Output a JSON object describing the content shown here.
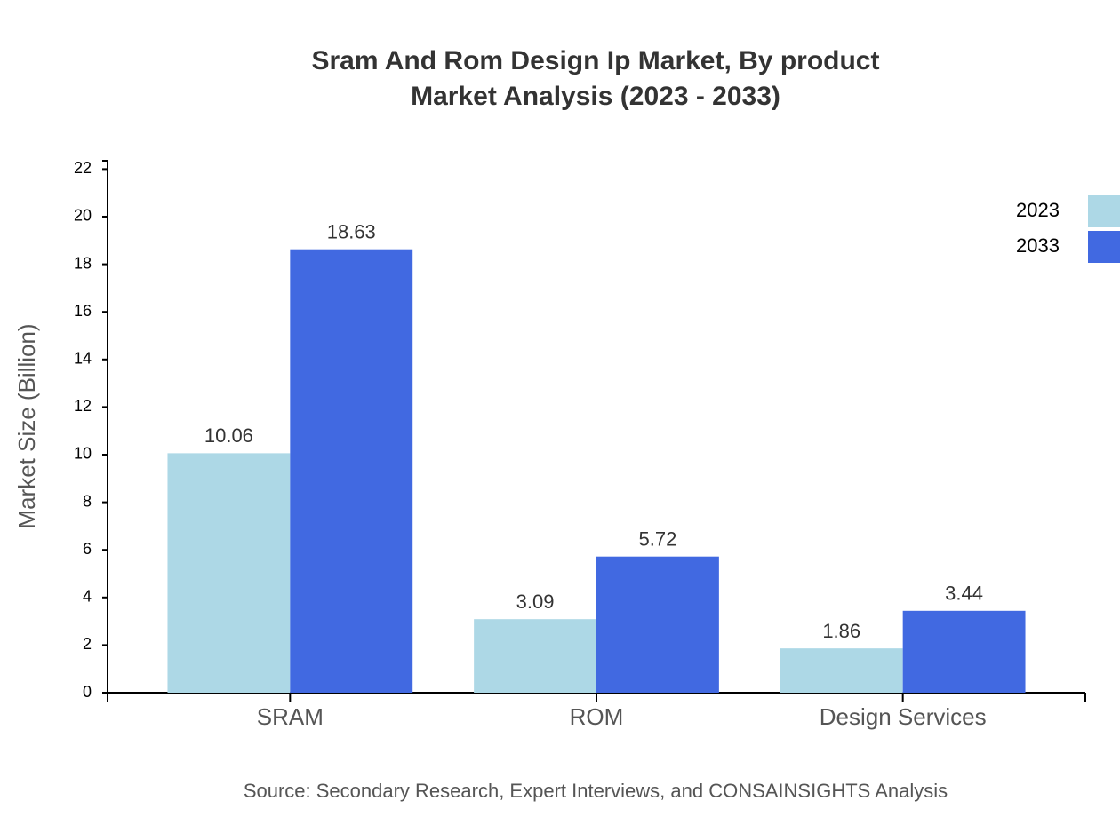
{
  "chart_data": {
    "type": "bar",
    "title": "Sram And Rom Design Ip Market, By product",
    "subtitle": "Market Analysis (2023 - 2033)",
    "y_label": "Market Size (Billion)",
    "source": "Source: Secondary Research, Expert Interviews, and CONSAINSIGHTS Analysis",
    "categories": [
      "SRAM",
      "ROM",
      "Design Services"
    ],
    "series": [
      {
        "name": "2023",
        "color": "#add8e6",
        "values": [
          10.06,
          3.09,
          1.86
        ]
      },
      {
        "name": "2033",
        "color": "#4169e1",
        "values": [
          18.63,
          5.72,
          3.44
        ]
      }
    ],
    "ylim": [
      0,
      22.35
    ],
    "yticks": [
      0,
      2,
      4,
      6,
      8,
      10,
      12,
      14,
      16,
      18,
      20,
      22
    ],
    "legend": "top-right"
  }
}
